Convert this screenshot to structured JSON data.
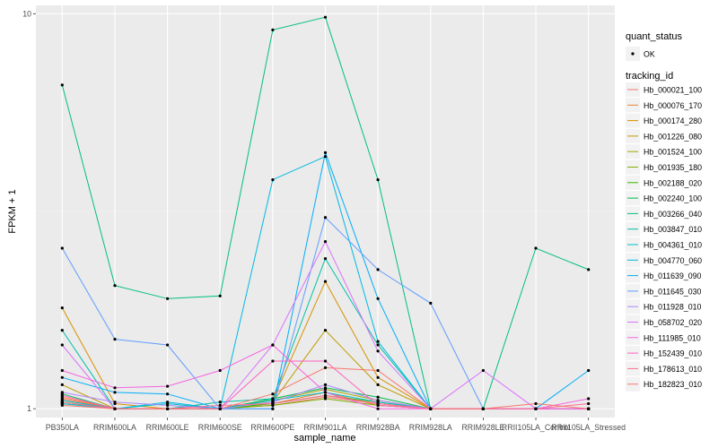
{
  "chart_data": {
    "type": "line",
    "title": "",
    "xlabel": "sample_name",
    "ylabel": "FPKM + 1",
    "y_scale": "log10",
    "ylim": [
      0.95,
      10.5
    ],
    "y_ticks": [
      1,
      10
    ],
    "y_tick_labels": [
      "1",
      "10"
    ],
    "categories": [
      "PB350LA",
      "RRIM600LA",
      "RRIM600LE",
      "RRIM600SE",
      "RRIM600PE",
      "RRIM901LA",
      "RRIM928BA",
      "RRIM928LA",
      "RRIM928LE",
      "RRII105LA_Control",
      "RRII105LA_Stressed"
    ],
    "legend_quant": {
      "title": "quant_status",
      "entries": [
        "OK"
      ]
    },
    "legend_tracking_title": "tracking_id",
    "series": [
      {
        "name": "Hb_000021_100",
        "color": "#F8766D",
        "values": [
          1.06,
          1.0,
          1.0,
          1.0,
          1.02,
          1.07,
          1.03,
          1.0,
          1.0,
          1.0,
          1.0
        ]
      },
      {
        "name": "Hb_000076_170",
        "color": "#EA8331",
        "values": [
          1.07,
          1.0,
          1.0,
          1.0,
          1.03,
          1.1,
          1.02,
          1.0,
          1.0,
          1.0,
          1.0
        ]
      },
      {
        "name": "Hb_000174_280",
        "color": "#D89000",
        "values": [
          1.8,
          1.03,
          1.0,
          1.0,
          1.05,
          2.1,
          1.2,
          1.0,
          1.0,
          1.0,
          1.0
        ]
      },
      {
        "name": "Hb_001226_080",
        "color": "#C09B00",
        "values": [
          1.15,
          1.0,
          1.0,
          1.0,
          1.04,
          1.58,
          1.15,
          1.0,
          1.0,
          1.0,
          1.0
        ]
      },
      {
        "name": "Hb_001524_100",
        "color": "#A3A500",
        "values": [
          1.05,
          1.0,
          1.0,
          1.0,
          1.05,
          1.12,
          1.05,
          1.0,
          1.0,
          1.0,
          1.0
        ]
      },
      {
        "name": "Hb_001935_180",
        "color": "#7CAE00",
        "values": [
          1.04,
          1.0,
          1.0,
          1.0,
          1.02,
          1.06,
          1.02,
          1.0,
          1.0,
          1.0,
          1.0
        ]
      },
      {
        "name": "Hb_002188_020",
        "color": "#39B600",
        "values": [
          1.03,
          1.0,
          1.0,
          1.0,
          1.03,
          1.08,
          1.04,
          1.0,
          1.0,
          1.0,
          1.0
        ]
      },
      {
        "name": "Hb_002240_100",
        "color": "#00BB4E",
        "values": [
          1.09,
          1.0,
          1.0,
          1.0,
          1.06,
          1.13,
          1.07,
          1.0,
          1.0,
          1.0,
          1.0
        ]
      },
      {
        "name": "Hb_003266_040",
        "color": "#00BF7D",
        "values": [
          6.6,
          2.05,
          1.9,
          1.93,
          9.1,
          9.8,
          3.8,
          1.0,
          1.0,
          2.55,
          2.25
        ]
      },
      {
        "name": "Hb_003847_010",
        "color": "#00C1A3",
        "values": [
          1.58,
          1.0,
          1.0,
          1.04,
          1.06,
          2.4,
          1.45,
          1.0,
          1.0,
          1.0,
          1.0
        ]
      },
      {
        "name": "Hb_004361_010",
        "color": "#00BFC4",
        "values": [
          1.05,
          1.0,
          1.03,
          1.0,
          1.05,
          1.1,
          1.04,
          1.0,
          1.0,
          1.0,
          1.0
        ]
      },
      {
        "name": "Hb_004770_060",
        "color": "#00B9E3",
        "values": [
          1.03,
          1.0,
          1.04,
          1.0,
          3.8,
          4.35,
          1.48,
          1.0,
          1.0,
          1.0,
          1.0
        ]
      },
      {
        "name": "Hb_011639_090",
        "color": "#00ADFA",
        "values": [
          1.2,
          1.1,
          1.09,
          1.0,
          1.0,
          4.45,
          1.9,
          1.0,
          1.0,
          1.0,
          1.25
        ]
      },
      {
        "name": "Hb_011645_030",
        "color": "#619CFF",
        "values": [
          2.55,
          1.5,
          1.45,
          1.0,
          1.0,
          3.05,
          2.25,
          1.85,
          1.0,
          1.0,
          1.0
        ]
      },
      {
        "name": "Hb_011928_010",
        "color": "#AE87FF",
        "values": [
          1.1,
          1.04,
          1.02,
          1.0,
          1.04,
          1.15,
          1.05,
          1.0,
          1.0,
          1.0,
          1.0
        ]
      },
      {
        "name": "Hb_058702_020",
        "color": "#DB72FB",
        "values": [
          1.45,
          1.0,
          1.0,
          1.0,
          1.45,
          2.65,
          1.4,
          1.0,
          1.25,
          1.0,
          1.0
        ]
      },
      {
        "name": "Hb_111985_010",
        "color": "#F564E3",
        "values": [
          1.25,
          1.13,
          1.14,
          1.25,
          1.45,
          1.1,
          1.0,
          1.0,
          1.0,
          1.0,
          1.06
        ]
      },
      {
        "name": "Hb_152439_010",
        "color": "#FF61C3",
        "values": [
          1.08,
          1.0,
          1.0,
          1.0,
          1.32,
          1.32,
          1.02,
          1.0,
          1.0,
          1.0,
          1.0
        ]
      },
      {
        "name": "Hb_178613_010",
        "color": "#FF6C91",
        "values": [
          1.04,
          1.0,
          1.0,
          1.02,
          1.03,
          1.08,
          1.03,
          1.0,
          1.0,
          1.0,
          1.03
        ]
      },
      {
        "name": "Hb_182823_010",
        "color": "#F8766D",
        "values": [
          1.02,
          1.0,
          1.0,
          1.0,
          1.09,
          1.27,
          1.25,
          1.0,
          1.0,
          1.03,
          1.0
        ]
      }
    ]
  }
}
